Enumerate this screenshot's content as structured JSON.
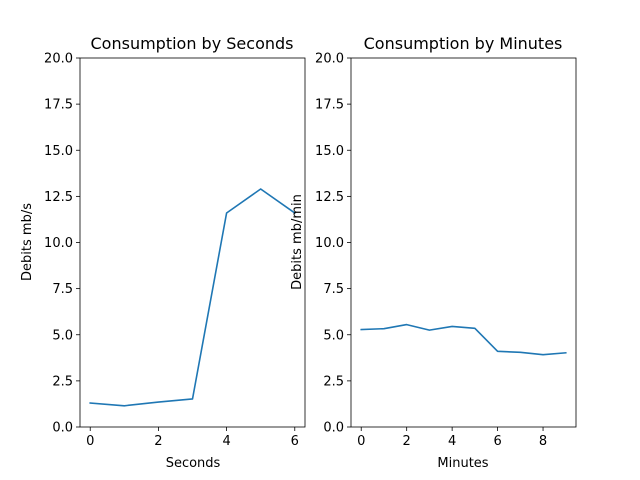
{
  "chart_data": [
    {
      "type": "line",
      "title": "Consumption by Seconds",
      "xlabel": "Seconds",
      "ylabel": "Debits mb/s",
      "xlim": [
        -0.3,
        6.3
      ],
      "ylim": [
        0,
        20
      ],
      "xticks": [
        0,
        2,
        4,
        6
      ],
      "yticks": [
        0.0,
        2.5,
        5.0,
        7.5,
        10.0,
        12.5,
        15.0,
        17.5,
        20.0
      ],
      "xtick_labels": [
        "0",
        "2",
        "4",
        "6"
      ],
      "ytick_labels": [
        "0.0",
        "2.5",
        "5.0",
        "7.5",
        "10.0",
        "12.5",
        "15.0",
        "17.5",
        "20.0"
      ],
      "grid": false,
      "color": "#1f77b4",
      "series": [
        {
          "x": [
            0,
            1,
            2,
            3,
            4,
            5,
            6
          ],
          "y": [
            1.3,
            1.15,
            1.35,
            1.52,
            11.6,
            12.9,
            11.6
          ]
        }
      ]
    },
    {
      "type": "line",
      "title": "Consumption by Minutes",
      "xlabel": "Minutes",
      "ylabel": "Debits mb/min",
      "xlim": [
        -0.45,
        9.45
      ],
      "ylim": [
        0,
        20
      ],
      "xticks": [
        0,
        2,
        4,
        6,
        8
      ],
      "yticks": [
        0.0,
        2.5,
        5.0,
        7.5,
        10.0,
        12.5,
        15.0,
        17.5,
        20.0
      ],
      "xtick_labels": [
        "0",
        "2",
        "4",
        "6",
        "8"
      ],
      "ytick_labels": [
        "0.0",
        "2.5",
        "5.0",
        "7.5",
        "10.0",
        "12.5",
        "15.0",
        "17.5",
        "20.0"
      ],
      "grid": false,
      "color": "#1f77b4",
      "series": [
        {
          "x": [
            0,
            1,
            2,
            3,
            4,
            5,
            6,
            7,
            8,
            9
          ],
          "y": [
            5.28,
            5.33,
            5.55,
            5.25,
            5.45,
            5.35,
            4.1,
            4.05,
            3.92,
            4.02
          ]
        }
      ]
    }
  ]
}
